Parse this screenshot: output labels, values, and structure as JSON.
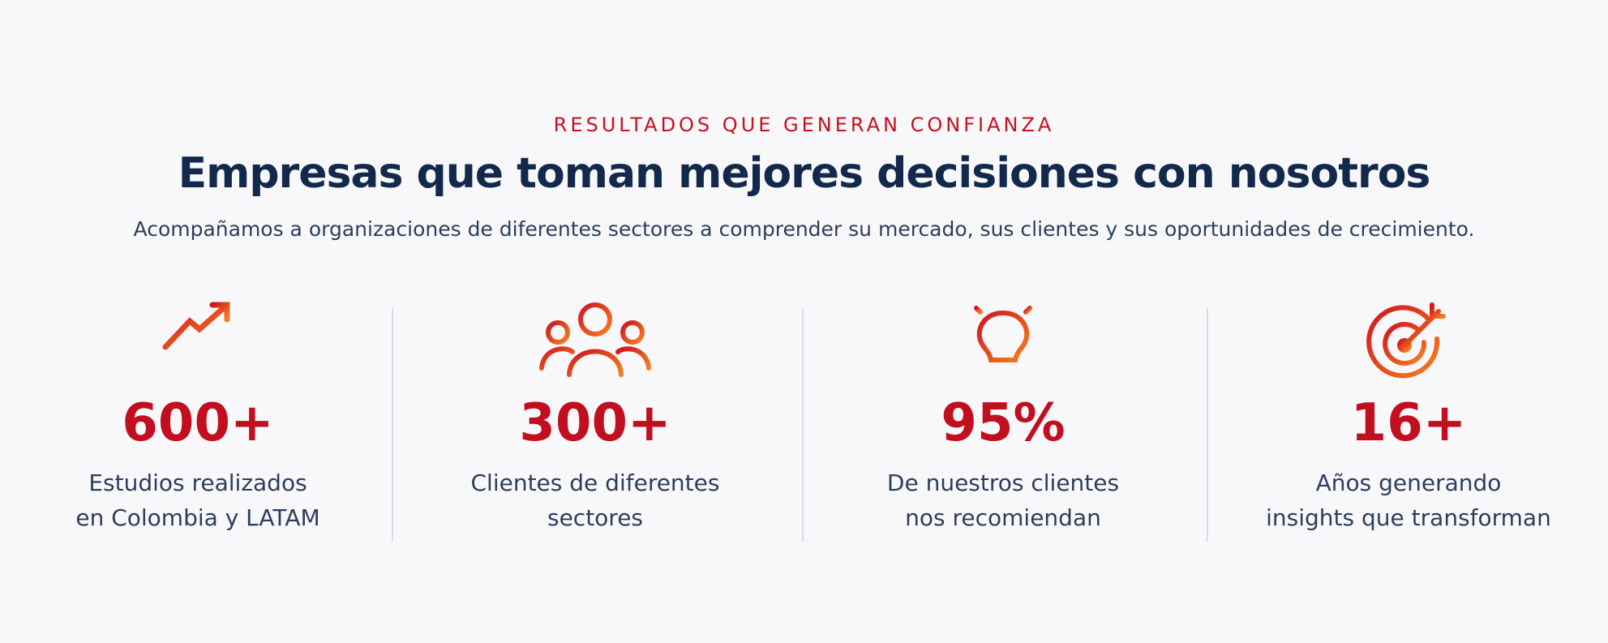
{
  "eyebrow": "RESULTADOS QUE GENERAN CONFIANZA",
  "title": "Empresas que toman mejores decisiones con nosotros",
  "subtitle": "Acompañamos a organizaciones de diferentes sectores a comprender su mercado, sus clientes y sus oportunidades de crecimiento.",
  "stats": [
    {
      "number": "600+",
      "lines": [
        "Estudios realizados",
        "en Colombia y LATAM"
      ]
    },
    {
      "number": "300+",
      "lines": [
        "Clientes de diferentes",
        "sectores"
      ]
    },
    {
      "number": "95%",
      "lines": [
        "De nuestros clientes",
        "nos recomiendan"
      ]
    },
    {
      "number": "16+",
      "lines": [
        "Años generando",
        "insights que transforman"
      ]
    }
  ]
}
